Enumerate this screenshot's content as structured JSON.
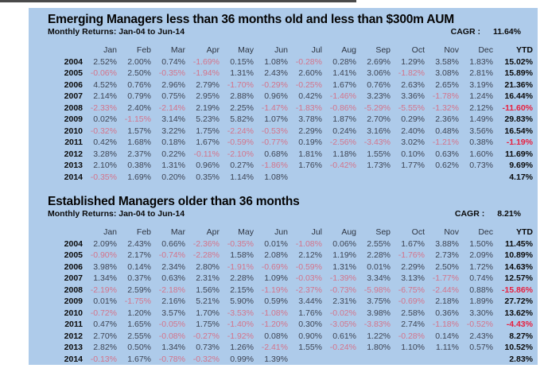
{
  "colors": {
    "panel_bg": "#aecbea",
    "positive_text": "#3d4454",
    "negative_text": "#d4748b",
    "ytd_negative_text": "#e8203f"
  },
  "tables": [
    {
      "title": "Emerging Managers less than 36 months old and less than $300m AUM",
      "subtitle": "Monthly Returns: Jan-04 to Jun-14",
      "cagr_label": "CAGR :",
      "cagr_value": "11.64%",
      "columns": [
        "Jan",
        "Feb",
        "Mar",
        "Apr",
        "May",
        "Jun",
        "Jul",
        "Aug",
        "Sep",
        "Oct",
        "Nov",
        "Dec",
        "YTD"
      ],
      "rows": [
        {
          "year": "2004",
          "values": [
            "2.52%",
            "2.00%",
            "0.74%",
            "-1.69%",
            "0.15%",
            "1.08%",
            "-0.28%",
            "0.28%",
            "2.69%",
            "1.29%",
            "3.58%",
            "1.83%"
          ],
          "ytd": "15.02%"
        },
        {
          "year": "2005",
          "values": [
            "-0.06%",
            "2.50%",
            "-0.35%",
            "-1.94%",
            "1.31%",
            "2.43%",
            "2.60%",
            "1.41%",
            "3.06%",
            "-1.82%",
            "3.08%",
            "2.81%"
          ],
          "ytd": "15.89%"
        },
        {
          "year": "2006",
          "values": [
            "4.52%",
            "0.76%",
            "2.96%",
            "2.79%",
            "-1.70%",
            "-0.29%",
            "-0.25%",
            "1.67%",
            "0.76%",
            "2.63%",
            "2.65%",
            "3.19%"
          ],
          "ytd": "21.36%"
        },
        {
          "year": "2007",
          "values": [
            "2.14%",
            "0.79%",
            "0.75%",
            "2.95%",
            "2.88%",
            "0.96%",
            "0.42%",
            "-1.46%",
            "3.23%",
            "3.36%",
            "-1.78%",
            "1.24%"
          ],
          "ytd": "16.44%"
        },
        {
          "year": "2008",
          "values": [
            "-2.33%",
            "2.40%",
            "-2.14%",
            "2.19%",
            "2.25%",
            "-1.47%",
            "-1.83%",
            "-0.86%",
            "-5.29%",
            "-5.55%",
            "-1.32%",
            "2.12%"
          ],
          "ytd": "-11.60%"
        },
        {
          "year": "2009",
          "values": [
            "0.02%",
            "-1.15%",
            "3.14%",
            "5.23%",
            "5.82%",
            "1.07%",
            "3.78%",
            "1.87%",
            "2.70%",
            "0.29%",
            "2.36%",
            "1.49%"
          ],
          "ytd": "29.83%"
        },
        {
          "year": "2010",
          "values": [
            "-0.32%",
            "1.57%",
            "3.22%",
            "1.75%",
            "-2.24%",
            "-0.53%",
            "2.29%",
            "0.24%",
            "3.16%",
            "2.40%",
            "0.48%",
            "3.56%"
          ],
          "ytd": "16.54%"
        },
        {
          "year": "2011",
          "values": [
            "0.42%",
            "1.68%",
            "0.18%",
            "1.67%",
            "-0.59%",
            "-0.77%",
            "0.19%",
            "-2.56%",
            "-3.43%",
            "3.02%",
            "-1.21%",
            "0.38%"
          ],
          "ytd": "-1.19%"
        },
        {
          "year": "2012",
          "values": [
            "3.28%",
            "2.37%",
            "0.22%",
            "-0.11%",
            "-2.10%",
            "0.68%",
            "1.81%",
            "1.18%",
            "1.55%",
            "0.10%",
            "0.63%",
            "1.60%"
          ],
          "ytd": "11.69%"
        },
        {
          "year": "2013",
          "values": [
            "2.10%",
            "0.38%",
            "1.31%",
            "0.96%",
            "0.27%",
            "-1.86%",
            "1.76%",
            "-0.42%",
            "1.73%",
            "1.77%",
            "0.62%",
            "0.73%"
          ],
          "ytd": "9.69%"
        },
        {
          "year": "2014",
          "values": [
            "-0.35%",
            "1.69%",
            "0.20%",
            "0.35%",
            "1.14%",
            "1.08%",
            "",
            "",
            "",
            "",
            "",
            ""
          ],
          "ytd": "4.17%"
        }
      ]
    },
    {
      "title": "Established Managers older than 36 months",
      "subtitle": "Monthly Returns: Jan-04 to Jun-14",
      "cagr_label": "CAGR :",
      "cagr_value": "8.21%",
      "columns": [
        "Jan",
        "Feb",
        "Mar",
        "Apr",
        "May",
        "Jun",
        "Jul",
        "Aug",
        "Sep",
        "Oct",
        "Nov",
        "Dec",
        "YTD"
      ],
      "rows": [
        {
          "year": "2004",
          "values": [
            "2.09%",
            "2.43%",
            "0.66%",
            "-2.36%",
            "-0.35%",
            "0.01%",
            "-1.08%",
            "0.06%",
            "2.55%",
            "1.67%",
            "3.88%",
            "1.50%"
          ],
          "ytd": "11.45%"
        },
        {
          "year": "2005",
          "values": [
            "-0.90%",
            "2.17%",
            "-0.74%",
            "-2.28%",
            "1.58%",
            "2.08%",
            "2.12%",
            "1.19%",
            "2.28%",
            "-1.76%",
            "2.73%",
            "2.09%"
          ],
          "ytd": "10.89%"
        },
        {
          "year": "2006",
          "values": [
            "3.98%",
            "0.14%",
            "2.34%",
            "2.80%",
            "-1.91%",
            "-0.69%",
            "-0.59%",
            "1.31%",
            "0.01%",
            "2.29%",
            "2.50%",
            "1.72%"
          ],
          "ytd": "14.63%"
        },
        {
          "year": "2007",
          "values": [
            "1.34%",
            "0.37%",
            "0.63%",
            "2.31%",
            "2.28%",
            "1.09%",
            "-0.03%",
            "-1.39%",
            "3.34%",
            "3.13%",
            "-1.77%",
            "0.74%"
          ],
          "ytd": "12.57%"
        },
        {
          "year": "2008",
          "values": [
            "-2.19%",
            "2.59%",
            "-2.18%",
            "1.56%",
            "2.15%",
            "-1.19%",
            "-2.37%",
            "-0.73%",
            "-5.98%",
            "-6.75%",
            "-2.44%",
            "0.88%"
          ],
          "ytd": "-15.86%"
        },
        {
          "year": "2009",
          "values": [
            "0.01%",
            "-1.75%",
            "2.16%",
            "5.21%",
            "5.90%",
            "0.59%",
            "3.44%",
            "2.31%",
            "3.75%",
            "-0.69%",
            "2.18%",
            "1.89%"
          ],
          "ytd": "27.72%"
        },
        {
          "year": "2010",
          "values": [
            "-0.72%",
            "1.20%",
            "3.57%",
            "1.70%",
            "-3.53%",
            "-1.08%",
            "1.76%",
            "-0.02%",
            "3.98%",
            "2.58%",
            "0.36%",
            "3.30%"
          ],
          "ytd": "13.62%"
        },
        {
          "year": "2011",
          "values": [
            "0.47%",
            "1.65%",
            "-0.05%",
            "1.75%",
            "-1.40%",
            "-1.20%",
            "0.30%",
            "-3.05%",
            "-3.83%",
            "2.74%",
            "-1.18%",
            "-0.52%"
          ],
          "ytd": "-4.43%"
        },
        {
          "year": "2012",
          "values": [
            "2.70%",
            "2.55%",
            "-0.08%",
            "-0.27%",
            "-1.92%",
            "0.08%",
            "0.90%",
            "0.61%",
            "1.22%",
            "-0.28%",
            "0.14%",
            "2.43%"
          ],
          "ytd": "8.27%"
        },
        {
          "year": "2013",
          "values": [
            "2.82%",
            "0.50%",
            "1.34%",
            "0.73%",
            "1.26%",
            "-2.41%",
            "1.55%",
            "-0.24%",
            "1.80%",
            "1.10%",
            "1.11%",
            "0.57%"
          ],
          "ytd": "10.52%"
        },
        {
          "year": "2014",
          "values": [
            "-0.13%",
            "1.67%",
            "-0.78%",
            "-0.32%",
            "0.99%",
            "1.39%",
            "",
            "",
            "",
            "",
            "",
            ""
          ],
          "ytd": "2.83%"
        }
      ]
    }
  ]
}
